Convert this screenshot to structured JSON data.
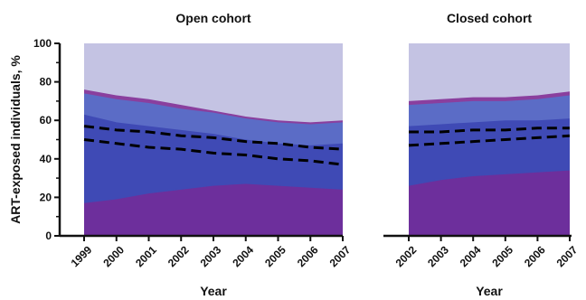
{
  "chart_data": [
    {
      "type": "area",
      "title": "Open cohort",
      "xlabel": "Year",
      "ylabel": "ART-exposed individuals, %",
      "x": [
        "1999",
        "2000",
        "2001",
        "2002",
        "2003",
        "2004",
        "2005",
        "2006",
        "2007"
      ],
      "ylim": [
        0,
        100
      ],
      "yticks": [
        "0",
        "20",
        "40",
        "60",
        "80",
        "100"
      ],
      "grid": false,
      "series_cumulative": [
        {
          "values": [
            17,
            19,
            22,
            24,
            26,
            27,
            26,
            25,
            24
          ]
        },
        {
          "values": [
            63,
            59,
            57,
            55,
            53,
            50,
            48,
            47,
            48
          ]
        },
        {
          "values": [
            74,
            71,
            69,
            66,
            64,
            61,
            59,
            58,
            59
          ]
        },
        {
          "values": [
            76,
            73,
            71,
            68,
            65,
            62,
            60,
            59,
            60
          ]
        },
        {
          "values": [
            100,
            100,
            100,
            100,
            100,
            100,
            100,
            100,
            100
          ]
        }
      ],
      "dashed_lines": [
        {
          "values": [
            57,
            55,
            54,
            52,
            51,
            49,
            48,
            46,
            45
          ]
        },
        {
          "values": [
            50,
            48,
            46,
            45,
            43,
            42,
            40,
            39,
            37
          ]
        }
      ]
    },
    {
      "type": "area",
      "title": "Closed cohort",
      "xlabel": "Year",
      "ylabel": "",
      "x": [
        "2002",
        "2003",
        "2004",
        "2005",
        "2006",
        "2007"
      ],
      "ylim": [
        0,
        100
      ],
      "grid": false,
      "series_cumulative": [
        {
          "values": [
            26,
            29,
            31,
            32,
            33,
            34
          ]
        },
        {
          "values": [
            57,
            58,
            59,
            60,
            60,
            61
          ]
        },
        {
          "values": [
            68,
            69,
            70,
            70,
            71,
            73
          ]
        },
        {
          "values": [
            70,
            71,
            72,
            72,
            73,
            75
          ]
        },
        {
          "values": [
            100,
            100,
            100,
            100,
            100,
            100
          ]
        }
      ],
      "dashed_lines": [
        {
          "values": [
            54,
            54,
            55,
            55,
            56,
            56
          ]
        },
        {
          "values": [
            47,
            48,
            49,
            50,
            51,
            52
          ]
        }
      ]
    }
  ],
  "colors": {
    "layer_colors": [
      "#6d2f9c",
      "#3f4ab5",
      "#5b6cc6",
      "#8a3f9e",
      "#c4c3e3"
    ],
    "dash_color": "#000000",
    "axis_color": "#111111"
  }
}
